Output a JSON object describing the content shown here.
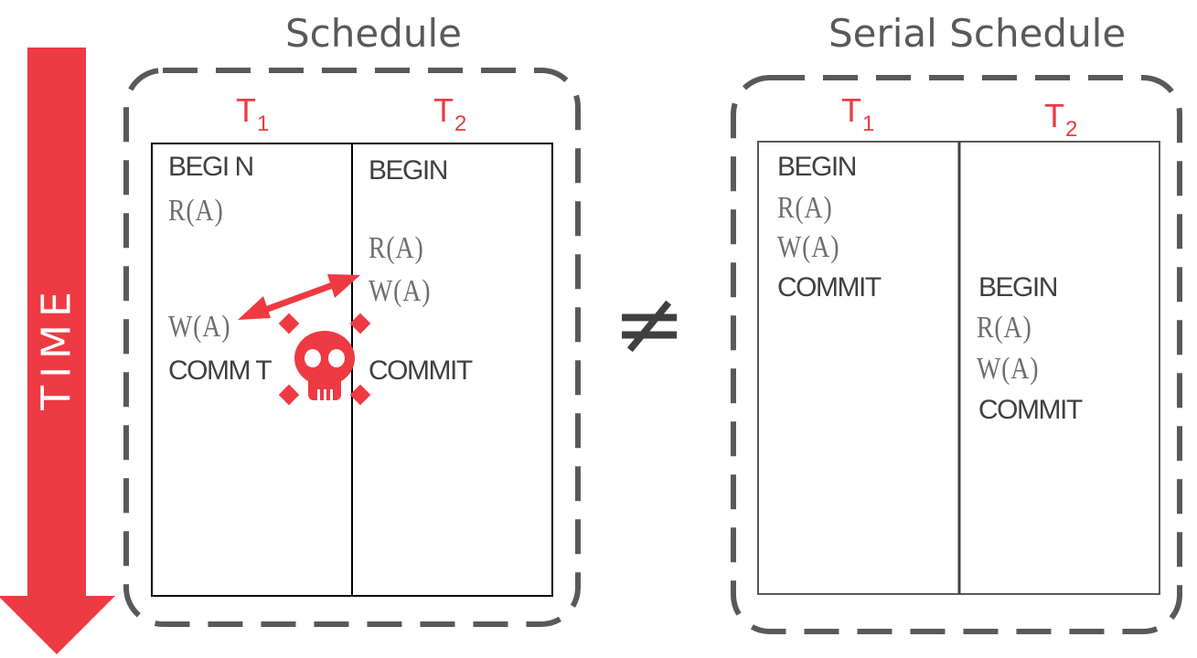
{
  "time_arrow": {
    "label": "TIME",
    "color": "#ee3a43"
  },
  "schedule": {
    "title": "Schedule",
    "t1": {
      "name": "T",
      "sub": "1"
    },
    "t2": {
      "name": "T",
      "sub": "2"
    },
    "t1_ops": {
      "begin": "BEGI N",
      "read": "R(A)",
      "write": "W(A)",
      "commit": "COMM T"
    },
    "t2_ops": {
      "begin": "BEGIN",
      "read": "R(A)",
      "write": "W(A)",
      "commit": "COMMIT"
    },
    "conflict_icon": "skull-crossbones-icon",
    "conflict_arrow": "double-headed-arrow"
  },
  "relation": {
    "symbol": "≠"
  },
  "serial_schedule": {
    "title": "Serial Schedule",
    "t1": {
      "name": "T",
      "sub": "1"
    },
    "t2": {
      "name": "T",
      "sub": "2"
    },
    "t1_ops": {
      "begin": "BEGIN",
      "read": "R(A)",
      "write": "W(A)",
      "commit": "COMMIT"
    },
    "t2_ops": {
      "begin": "BEGIN",
      "read": "R(A)",
      "write": "W(A)",
      "commit": "COMMIT"
    }
  },
  "colors": {
    "accent": "#ee3a43",
    "text": "#404040",
    "dashed_border": "#595959"
  }
}
